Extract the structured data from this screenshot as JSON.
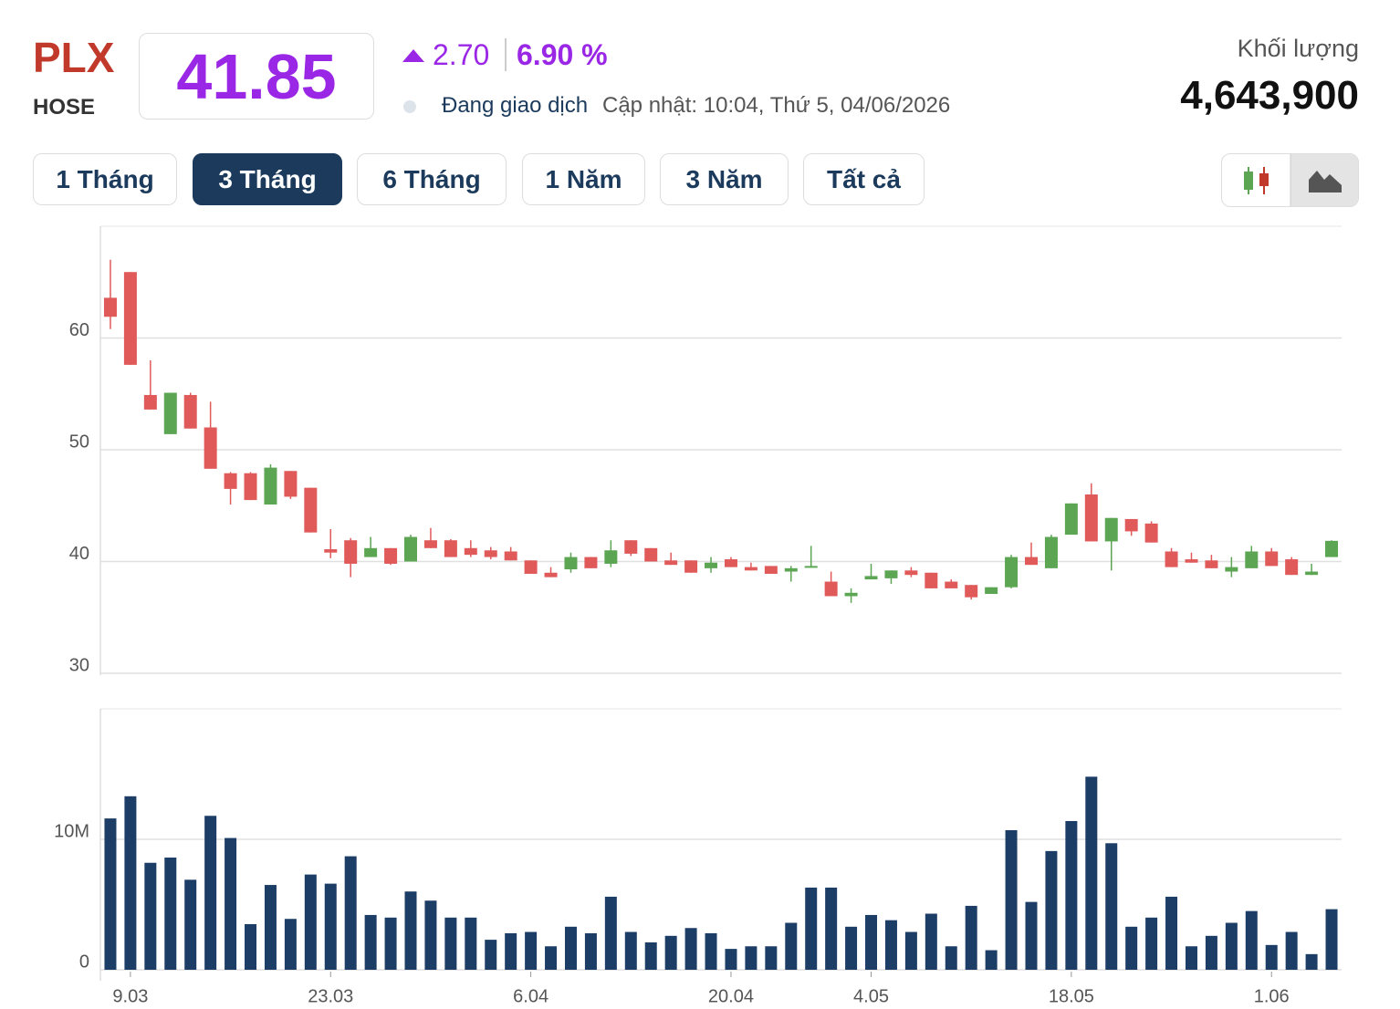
{
  "header": {
    "symbol": "PLX",
    "exchange": "HOSE",
    "price": "41.85",
    "change": "2.70",
    "change_percent": "6.90 %",
    "status": "Đang giao dịch",
    "updated": "Cập nhật: 10:04, Thứ 5, 04/06/2026",
    "volume_label": "Khối lượng",
    "volume": "4,643,900"
  },
  "tabs": [
    "1 Tháng",
    "3 Tháng",
    "6 Tháng",
    "1 Năm",
    "3 Năm",
    "Tất cả"
  ],
  "active_tab": 1,
  "chart_data": {
    "type": "candlestick",
    "categories": [
      null,
      "9.03",
      null,
      null,
      null,
      null,
      null,
      null,
      null,
      null,
      null,
      "23.03",
      null,
      null,
      null,
      null,
      null,
      null,
      null,
      null,
      null,
      "6.04",
      null,
      null,
      null,
      null,
      null,
      null,
      null,
      null,
      null,
      "20.04",
      null,
      null,
      null,
      null,
      null,
      null,
      "4.05",
      null,
      null,
      null,
      null,
      null,
      null,
      null,
      null,
      null,
      "18.05",
      null,
      null,
      null,
      null,
      null,
      null,
      null,
      null,
      null,
      "1.06",
      null,
      null,
      null
    ],
    "open": [
      63.6,
      65.9,
      54.9,
      51.4,
      54.9,
      52.0,
      47.9,
      47.9,
      45.1,
      48.1,
      46.6,
      41.1,
      41.9,
      40.4,
      41.2,
      40.0,
      41.9,
      41.9,
      41.2,
      41.0,
      40.9,
      40.1,
      39.0,
      39.3,
      40.4,
      39.8,
      41.9,
      41.2,
      40.1,
      40.1,
      39.4,
      40.2,
      39.5,
      39.6,
      39.1,
      39.5,
      38.2,
      36.9,
      38.4,
      38.5,
      39.2,
      39.0,
      38.2,
      37.9,
      37.1,
      37.7,
      40.4,
      39.4,
      42.4,
      46.0,
      41.8,
      43.8,
      43.4,
      40.9,
      40.2,
      40.1,
      39.1,
      39.4,
      40.9,
      40.2,
      38.8,
      40.4
    ],
    "high": [
      67.0,
      65.9,
      58.0,
      55.1,
      55.1,
      54.3,
      48.0,
      48.0,
      48.7,
      48.1,
      46.6,
      42.9,
      42.1,
      42.2,
      41.2,
      42.4,
      43.0,
      42.0,
      41.9,
      41.3,
      41.3,
      40.1,
      39.5,
      40.8,
      40.4,
      41.9,
      41.9,
      41.2,
      40.8,
      40.1,
      40.4,
      40.4,
      39.9,
      39.6,
      39.6,
      41.4,
      39.1,
      37.6,
      39.8,
      39.2,
      39.5,
      39.0,
      38.4,
      37.9,
      37.7,
      40.6,
      41.7,
      42.4,
      45.2,
      47.0,
      43.9,
      43.8,
      43.6,
      41.2,
      40.8,
      40.6,
      40.4,
      41.4,
      41.2,
      40.4,
      39.8,
      41.9
    ],
    "low": [
      60.8,
      57.6,
      53.6,
      51.4,
      51.9,
      48.3,
      45.1,
      45.5,
      45.1,
      45.6,
      42.6,
      40.3,
      38.6,
      40.4,
      39.7,
      40.0,
      41.2,
      40.4,
      40.4,
      40.2,
      40.1,
      38.9,
      38.6,
      39.0,
      39.4,
      39.5,
      40.5,
      40.0,
      39.7,
      39.0,
      39.0,
      39.5,
      39.2,
      38.9,
      38.2,
      39.5,
      36.9,
      36.3,
      38.4,
      38.0,
      38.6,
      37.6,
      37.6,
      36.6,
      37.1,
      37.6,
      39.7,
      39.4,
      42.4,
      41.8,
      39.2,
      42.3,
      41.7,
      39.5,
      39.9,
      39.4,
      38.6,
      39.4,
      39.6,
      38.8,
      38.8,
      40.4
    ],
    "close": [
      61.9,
      57.6,
      53.6,
      55.1,
      51.9,
      48.3,
      46.5,
      45.5,
      48.4,
      45.8,
      42.6,
      40.8,
      39.8,
      41.2,
      39.8,
      42.2,
      41.2,
      40.4,
      40.6,
      40.4,
      40.1,
      38.9,
      38.6,
      40.4,
      39.4,
      41.0,
      40.7,
      40.0,
      39.7,
      39.0,
      39.9,
      39.5,
      39.2,
      38.9,
      39.4,
      39.6,
      36.9,
      37.2,
      38.7,
      39.2,
      38.8,
      37.6,
      37.6,
      36.8,
      37.7,
      40.4,
      39.7,
      42.2,
      45.2,
      41.8,
      43.9,
      42.7,
      41.7,
      39.5,
      39.9,
      39.4,
      39.5,
      40.9,
      39.6,
      38.8,
      39.1,
      41.85
    ],
    "up_color": "#5ba553",
    "down_color": "#e05a5a",
    "ylim": [
      30,
      70
    ],
    "yticks": [
      30,
      40,
      50,
      60
    ],
    "grid": true,
    "volume": {
      "values": [
        11600000,
        13300000,
        8200000,
        8600000,
        6900000,
        11800000,
        10100000,
        3500000,
        6500000,
        3900000,
        7300000,
        6600000,
        8700000,
        4200000,
        4000000,
        6000000,
        5300000,
        4000000,
        4000000,
        2300000,
        2800000,
        2900000,
        1800000,
        3300000,
        2800000,
        5600000,
        2900000,
        2100000,
        2600000,
        3200000,
        2800000,
        1600000,
        1800000,
        1800000,
        3600000,
        6300000,
        6300000,
        3300000,
        4200000,
        3800000,
        2900000,
        4300000,
        1800000,
        4900000,
        1500000,
        10700000,
        5200000,
        9100000,
        11400000,
        14800000,
        9700000,
        3300000,
        4000000,
        5600000,
        1800000,
        2600000,
        3600000,
        4500000,
        1900000,
        2900000,
        1200000,
        4643900
      ],
      "color": "#1c3d66",
      "ylim": [
        0,
        20000000
      ],
      "yticks": [
        0,
        {
          "value": 10000000,
          "label": "10M"
        }
      ]
    }
  }
}
